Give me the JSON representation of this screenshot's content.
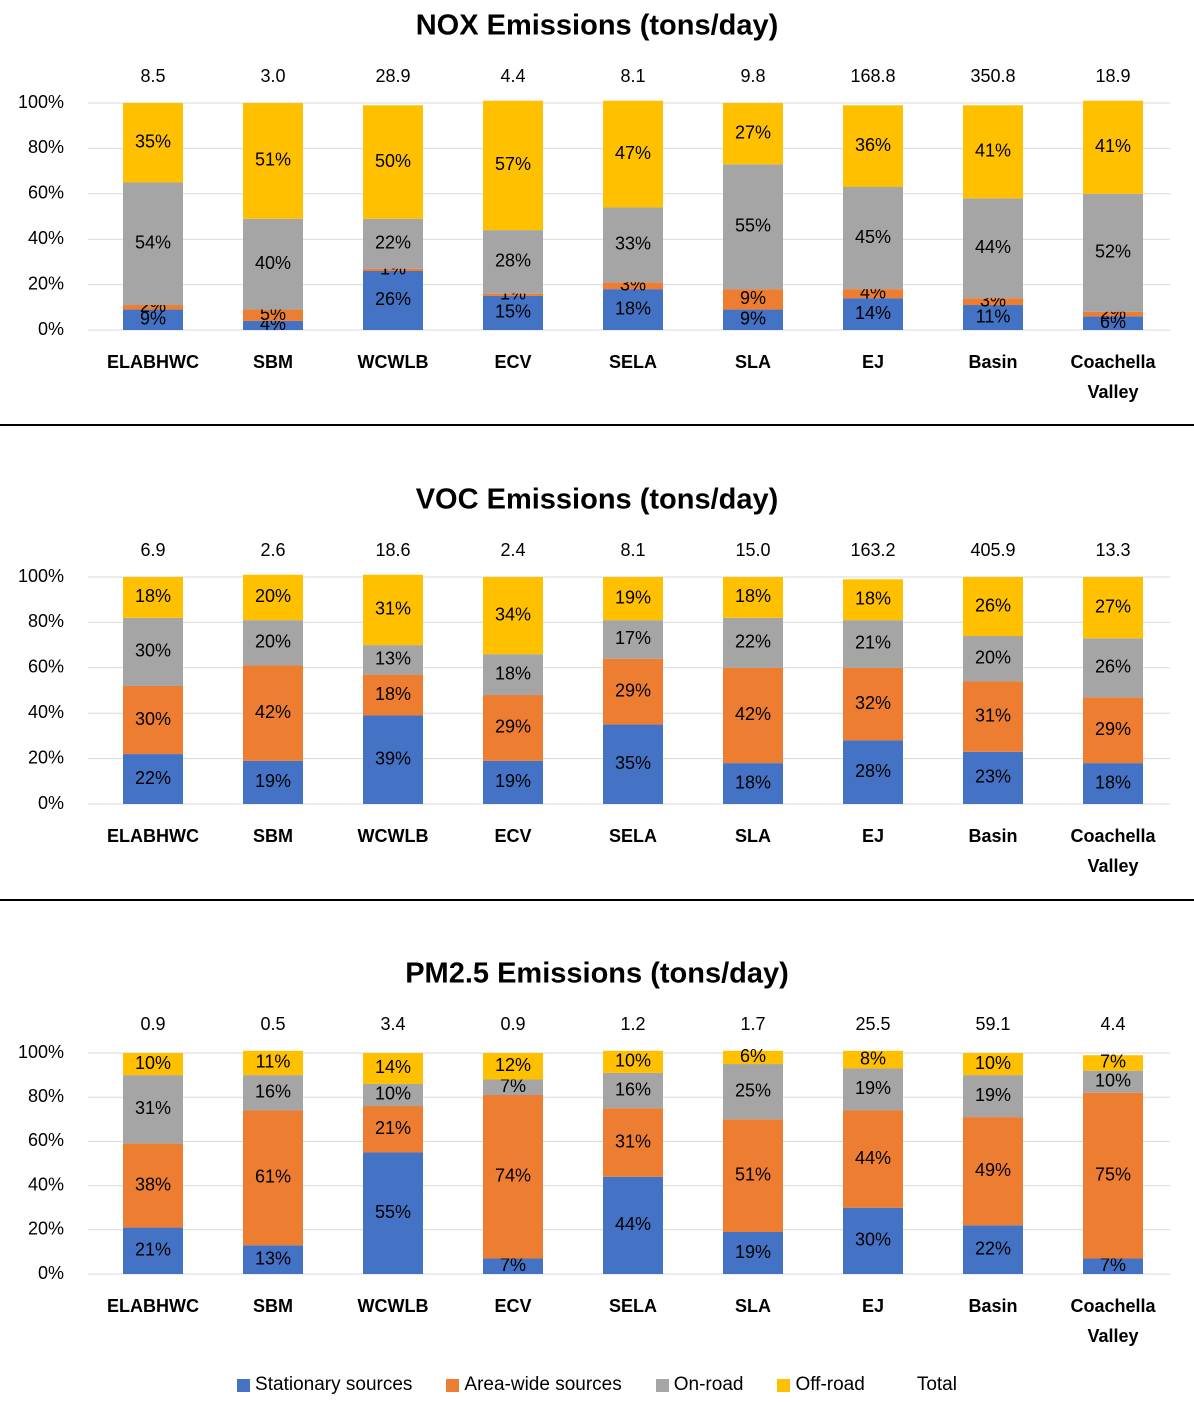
{
  "chart_data": [
    {
      "type": "bar",
      "stacked": true,
      "title": "NOX Emissions (tons/day)",
      "categories": [
        "ELABHWC",
        "SBM",
        "WCWLB",
        "ECV",
        "SELA",
        "SLA",
        "EJ",
        "Basin",
        "Coachella Valley"
      ],
      "totals": {
        "values": [
          8.5,
          3.0,
          28.9,
          4.4,
          8.1,
          9.8,
          168.8,
          350.8,
          18.9
        ],
        "value_labels": [
          "8.5",
          "3.0",
          "28.9",
          "4.4",
          "8.1",
          "9.8",
          "168.8",
          "350.8",
          "18.9"
        ]
      },
      "series": [
        {
          "color": "#4472c4",
          "values": [
            9,
            4,
            26,
            15,
            18,
            9,
            14,
            11,
            6
          ],
          "value_labels": [
            "9%",
            "4%",
            "26%",
            "15%",
            "18%",
            "9%",
            "14%",
            "11%",
            "6%"
          ]
        },
        {
          "color": "#ed7d31",
          "values": [
            2,
            5,
            1,
            1,
            3,
            9,
            4,
            3,
            2
          ],
          "value_labels": [
            "2%",
            "5%",
            "1%",
            "1%",
            "3%",
            "9%",
            "4%",
            "3%",
            "2%"
          ]
        },
        {
          "color": "#a5a5a5",
          "values": [
            54,
            40,
            22,
            28,
            33,
            55,
            45,
            44,
            52
          ],
          "value_labels": [
            "54%",
            "40%",
            "22%",
            "28%",
            "33%",
            "55%",
            "45%",
            "44%",
            "52%"
          ]
        },
        {
          "color": "#ffc000",
          "values": [
            35,
            51,
            50,
            57,
            47,
            27,
            36,
            41,
            41
          ],
          "value_labels": [
            "35%",
            "51%",
            "50%",
            "57%",
            "47%",
            "27%",
            "36%",
            "41%",
            "41%"
          ]
        }
      ],
      "ylim": [
        0,
        100
      ],
      "yticks": [
        {
          "value": 0,
          "label": "0%"
        },
        {
          "value": 20,
          "label": "20%"
        },
        {
          "value": 40,
          "label": "40%"
        },
        {
          "value": 60,
          "label": "60%"
        },
        {
          "value": 80,
          "label": "80%"
        },
        {
          "value": 100,
          "label": "100%"
        }
      ],
      "grid": true
    },
    {
      "type": "bar",
      "stacked": true,
      "title": "VOC Emissions (tons/day)",
      "categories": [
        "ELABHWC",
        "SBM",
        "WCWLB",
        "ECV",
        "SELA",
        "SLA",
        "EJ",
        "Basin",
        "Coachella Valley"
      ],
      "totals": {
        "values": [
          6.9,
          2.6,
          18.6,
          2.4,
          8.1,
          15.0,
          163.2,
          405.9,
          13.3
        ],
        "value_labels": [
          "6.9",
          "2.6",
          "18.6",
          "2.4",
          "8.1",
          "15.0",
          "163.2",
          "405.9",
          "13.3"
        ]
      },
      "series": [
        {
          "color": "#4472c4",
          "values": [
            22,
            19,
            39,
            19,
            35,
            18,
            28,
            23,
            18
          ],
          "value_labels": [
            "22%",
            "19%",
            "39%",
            "19%",
            "35%",
            "18%",
            "28%",
            "23%",
            "18%"
          ]
        },
        {
          "color": "#ed7d31",
          "values": [
            30,
            42,
            18,
            29,
            29,
            42,
            32,
            31,
            29
          ],
          "value_labels": [
            "30%",
            "42%",
            "18%",
            "29%",
            "29%",
            "42%",
            "32%",
            "31%",
            "29%"
          ]
        },
        {
          "color": "#a5a5a5",
          "values": [
            30,
            20,
            13,
            18,
            17,
            22,
            21,
            20,
            26
          ],
          "value_labels": [
            "30%",
            "20%",
            "13%",
            "18%",
            "17%",
            "22%",
            "21%",
            "20%",
            "26%"
          ]
        },
        {
          "color": "#ffc000",
          "values": [
            18,
            20,
            31,
            34,
            19,
            18,
            18,
            26,
            27
          ],
          "value_labels": [
            "18%",
            "20%",
            "31%",
            "34%",
            "19%",
            "18%",
            "18%",
            "26%",
            "27%"
          ]
        }
      ],
      "ylim": [
        0,
        100
      ],
      "yticks": [
        {
          "value": 0,
          "label": "0%"
        },
        {
          "value": 20,
          "label": "20%"
        },
        {
          "value": 40,
          "label": "40%"
        },
        {
          "value": 60,
          "label": "60%"
        },
        {
          "value": 80,
          "label": "80%"
        },
        {
          "value": 100,
          "label": "100%"
        }
      ],
      "grid": true
    },
    {
      "type": "bar",
      "stacked": true,
      "title": "PM2.5 Emissions (tons/day)",
      "categories": [
        "ELABHWC",
        "SBM",
        "WCWLB",
        "ECV",
        "SELA",
        "SLA",
        "EJ",
        "Basin",
        "Coachella Valley"
      ],
      "totals": {
        "values": [
          0.9,
          0.5,
          3.4,
          0.9,
          1.2,
          1.7,
          25.5,
          59.1,
          4.4
        ],
        "value_labels": [
          "0.9",
          "0.5",
          "3.4",
          "0.9",
          "1.2",
          "1.7",
          "25.5",
          "59.1",
          "4.4"
        ]
      },
      "series": [
        {
          "color": "#4472c4",
          "values": [
            21,
            13,
            55,
            7,
            44,
            19,
            30,
            22,
            7
          ],
          "value_labels": [
            "21%",
            "13%",
            "55%",
            "7%",
            "44%",
            "19%",
            "30%",
            "22%",
            "7%"
          ]
        },
        {
          "color": "#ed7d31",
          "values": [
            38,
            61,
            21,
            74,
            31,
            51,
            44,
            49,
            75
          ],
          "value_labels": [
            "38%",
            "61%",
            "21%",
            "74%",
            "31%",
            "51%",
            "44%",
            "49%",
            "75%"
          ]
        },
        {
          "color": "#a5a5a5",
          "values": [
            31,
            16,
            10,
            7,
            16,
            25,
            19,
            19,
            10
          ],
          "value_labels": [
            "31%",
            "16%",
            "10%",
            "7%",
            "16%",
            "25%",
            "19%",
            "19%",
            "10%"
          ]
        },
        {
          "color": "#ffc000",
          "values": [
            10,
            11,
            14,
            12,
            10,
            6,
            8,
            10,
            7
          ],
          "value_labels": [
            "10%",
            "11%",
            "14%",
            "12%",
            "10%",
            "6%",
            "8%",
            "10%",
            "7%"
          ]
        }
      ],
      "ylim": [
        0,
        100
      ],
      "yticks": [
        {
          "value": 0,
          "label": "0%"
        },
        {
          "value": 20,
          "label": "20%"
        },
        {
          "value": 40,
          "label": "40%"
        },
        {
          "value": 60,
          "label": "60%"
        },
        {
          "value": 80,
          "label": "80%"
        },
        {
          "value": 100,
          "label": "100%"
        }
      ],
      "grid": true
    }
  ],
  "legend": [
    {
      "name": "Stationary sources",
      "color": "#4472c4"
    },
    {
      "name": "Area-wide sources",
      "color": "#ed7d31"
    },
    {
      "name": "On-road",
      "color": "#a5a5a5"
    },
    {
      "name": "Off-road",
      "color": "#ffc000"
    },
    {
      "name": "Total"
    }
  ]
}
